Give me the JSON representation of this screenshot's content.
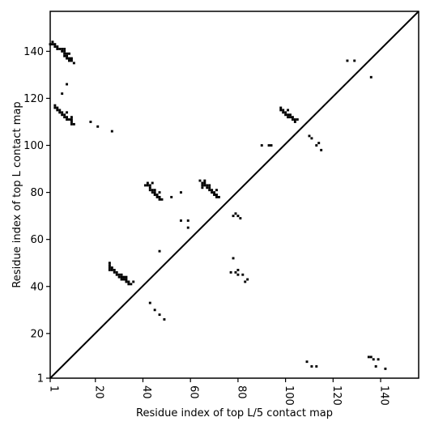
{
  "chart_data": {
    "type": "scatter",
    "title": "",
    "xlabel": "Residue index of top L/5 contact map",
    "ylabel": "Residue index of top L contact map",
    "xlim": [
      1,
      156
    ],
    "ylim": [
      1,
      157
    ],
    "xticks": [
      1,
      20,
      40,
      60,
      80,
      100,
      120,
      140
    ],
    "yticks": [
      1,
      20,
      40,
      60,
      80,
      100,
      120,
      140
    ],
    "diagonal": true,
    "grid": false,
    "marker_color": "#000000",
    "series": [
      {
        "points": [
          [
            1,
            143
          ],
          [
            2,
            143
          ],
          [
            2,
            144
          ],
          [
            3,
            142
          ],
          [
            3,
            143
          ],
          [
            4,
            141
          ],
          [
            4,
            142
          ],
          [
            5,
            141
          ],
          [
            6,
            140
          ],
          [
            6,
            141
          ],
          [
            7,
            138
          ],
          [
            7,
            139
          ],
          [
            7,
            140
          ],
          [
            7,
            141
          ],
          [
            8,
            137
          ],
          [
            8,
            138
          ],
          [
            8,
            139
          ],
          [
            9,
            136
          ],
          [
            9,
            137
          ],
          [
            9,
            139
          ],
          [
            10,
            136
          ],
          [
            10,
            137
          ],
          [
            11,
            135
          ],
          [
            8,
            126
          ],
          [
            6,
            122
          ],
          [
            3,
            116
          ],
          [
            3,
            117
          ],
          [
            4,
            115
          ],
          [
            4,
            116
          ],
          [
            5,
            114
          ],
          [
            5,
            115
          ],
          [
            6,
            113
          ],
          [
            6,
            114
          ],
          [
            7,
            112
          ],
          [
            7,
            113
          ],
          [
            8,
            111
          ],
          [
            8,
            112
          ],
          [
            8,
            114
          ],
          [
            9,
            111
          ],
          [
            10,
            110
          ],
          [
            10,
            111
          ],
          [
            10,
            112
          ],
          [
            11,
            109
          ],
          [
            10,
            109
          ],
          [
            18,
            110
          ],
          [
            21,
            108
          ],
          [
            27,
            106
          ],
          [
            98,
            115
          ],
          [
            98,
            116
          ],
          [
            99,
            114
          ],
          [
            99,
            115
          ],
          [
            100,
            113
          ],
          [
            100,
            114
          ],
          [
            101,
            112
          ],
          [
            101,
            113
          ],
          [
            101,
            115
          ],
          [
            102,
            112
          ],
          [
            102,
            113
          ],
          [
            103,
            111
          ],
          [
            103,
            112
          ],
          [
            104,
            110
          ],
          [
            104,
            111
          ],
          [
            105,
            111
          ],
          [
            110,
            104
          ],
          [
            111,
            103
          ],
          [
            113,
            100
          ],
          [
            114,
            101
          ],
          [
            115,
            98
          ],
          [
            90,
            100
          ],
          [
            93,
            100
          ],
          [
            94,
            100
          ],
          [
            126,
            136
          ],
          [
            129,
            136
          ],
          [
            136,
            129
          ],
          [
            41,
            83
          ],
          [
            42,
            83
          ],
          [
            42,
            84
          ],
          [
            43,
            81
          ],
          [
            43,
            82
          ],
          [
            43,
            83
          ],
          [
            44,
            80
          ],
          [
            44,
            81
          ],
          [
            44,
            84
          ],
          [
            45,
            79
          ],
          [
            45,
            80
          ],
          [
            45,
            81
          ],
          [
            46,
            78
          ],
          [
            46,
            79
          ],
          [
            47,
            77
          ],
          [
            47,
            78
          ],
          [
            47,
            80
          ],
          [
            48,
            77
          ],
          [
            52,
            78
          ],
          [
            56,
            80
          ],
          [
            64,
            85
          ],
          [
            65,
            82
          ],
          [
            65,
            83
          ],
          [
            65,
            84
          ],
          [
            66,
            83
          ],
          [
            66,
            84
          ],
          [
            66,
            85
          ],
          [
            67,
            82
          ],
          [
            67,
            83
          ],
          [
            68,
            81
          ],
          [
            68,
            82
          ],
          [
            68,
            83
          ],
          [
            69,
            80
          ],
          [
            69,
            81
          ],
          [
            70,
            79
          ],
          [
            70,
            80
          ],
          [
            71,
            78
          ],
          [
            71,
            79
          ],
          [
            71,
            81
          ],
          [
            72,
            78
          ],
          [
            56,
            68
          ],
          [
            59,
            68
          ],
          [
            59,
            65
          ],
          [
            78,
            70
          ],
          [
            79,
            71
          ],
          [
            80,
            70
          ],
          [
            81,
            69
          ],
          [
            78,
            52
          ],
          [
            47,
            55
          ],
          [
            77,
            46
          ],
          [
            79,
            46
          ],
          [
            80,
            47
          ],
          [
            80,
            45
          ],
          [
            82,
            45
          ],
          [
            83,
            42
          ],
          [
            84,
            43
          ],
          [
            26,
            47
          ],
          [
            26,
            48
          ],
          [
            26,
            49
          ],
          [
            26,
            50
          ],
          [
            27,
            47
          ],
          [
            27,
            48
          ],
          [
            28,
            46
          ],
          [
            28,
            47
          ],
          [
            29,
            45
          ],
          [
            29,
            46
          ],
          [
            30,
            44
          ],
          [
            30,
            45
          ],
          [
            31,
            43
          ],
          [
            31,
            44
          ],
          [
            31,
            45
          ],
          [
            32,
            43
          ],
          [
            32,
            44
          ],
          [
            33,
            42
          ],
          [
            33,
            43
          ],
          [
            33,
            44
          ],
          [
            34,
            41
          ],
          [
            34,
            42
          ],
          [
            35,
            41
          ],
          [
            36,
            42
          ],
          [
            43,
            33
          ],
          [
            45,
            30
          ],
          [
            47,
            28
          ],
          [
            49,
            26
          ],
          [
            109,
            8
          ],
          [
            111,
            6
          ],
          [
            113,
            6
          ],
          [
            135,
            10
          ],
          [
            136,
            10
          ],
          [
            137,
            9
          ],
          [
            138,
            6
          ],
          [
            139,
            9
          ],
          [
            142,
            5
          ]
        ]
      }
    ]
  }
}
